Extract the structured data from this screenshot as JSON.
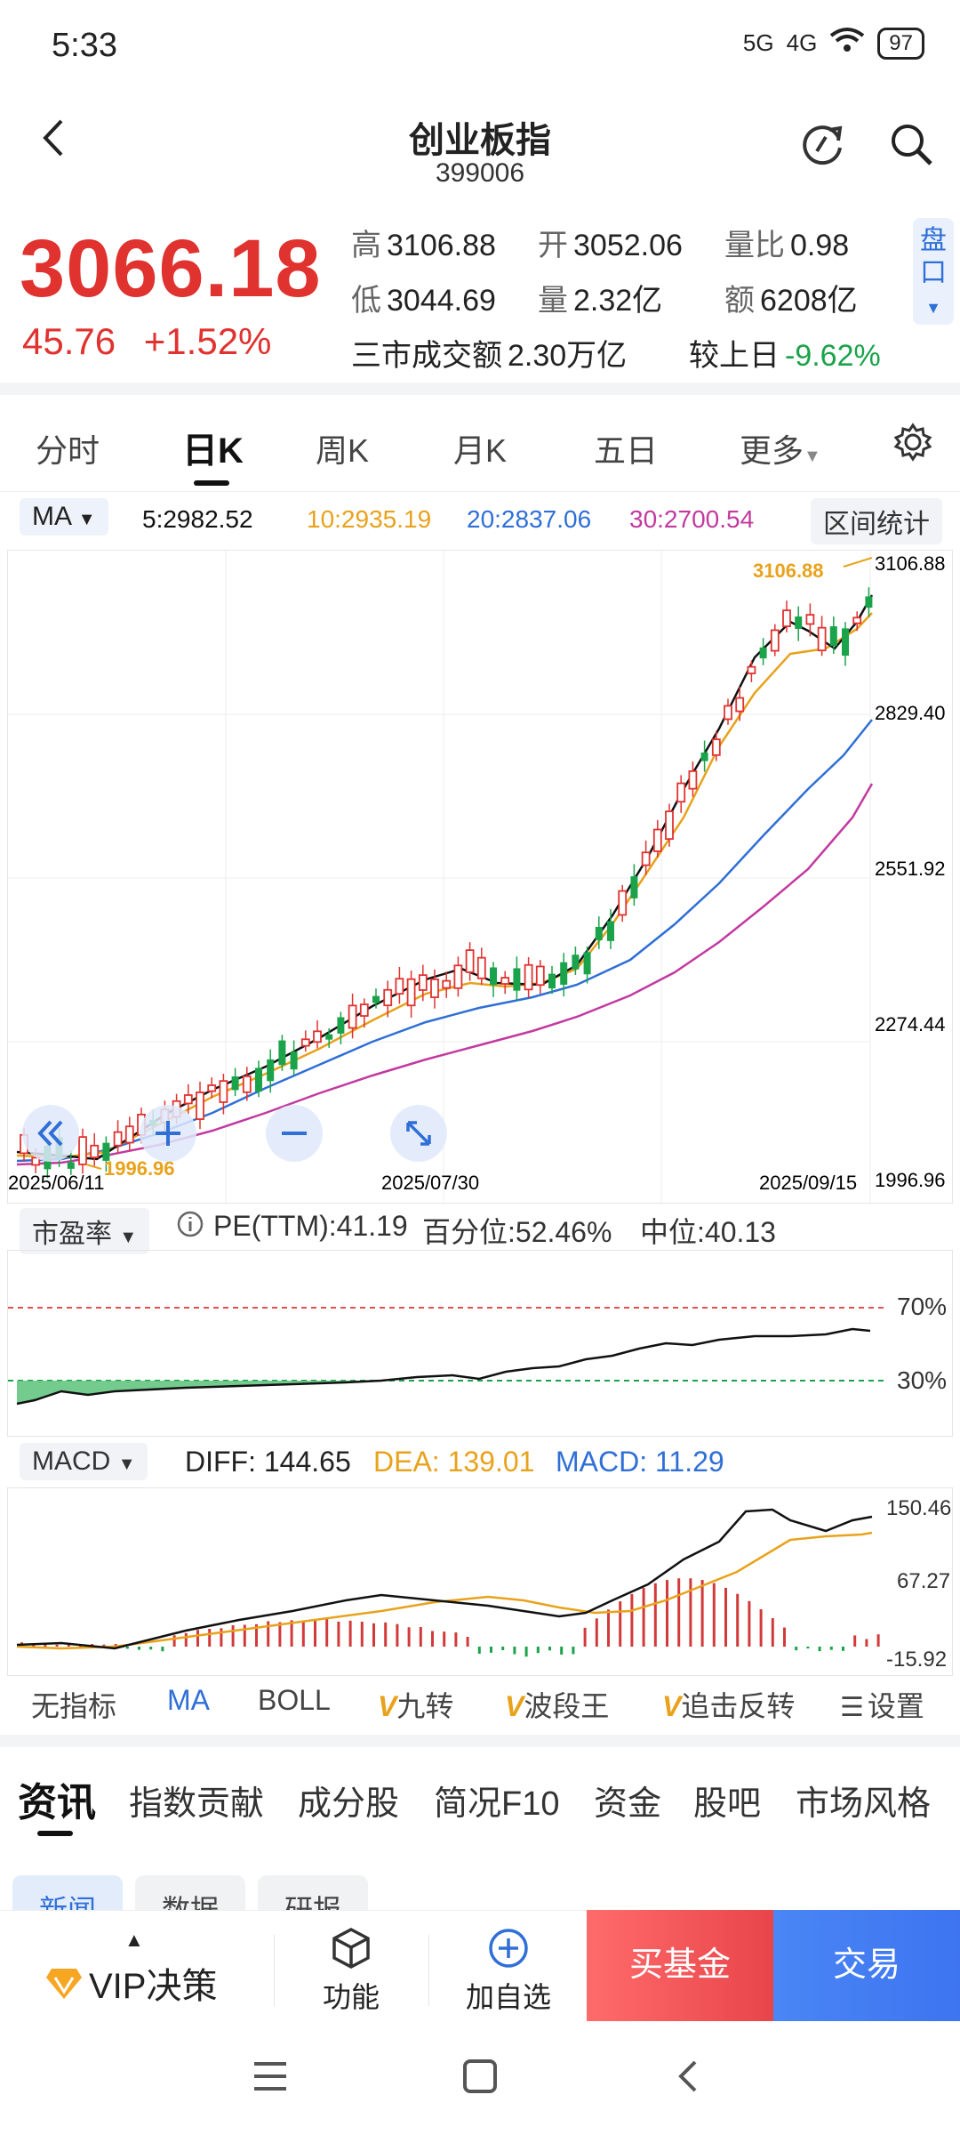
{
  "status_bar": {
    "time": "5:33",
    "signal1": "5G",
    "signal2": "4G",
    "battery": "97"
  },
  "header": {
    "title": "创业板指",
    "code": "399006"
  },
  "quote": {
    "price": "3066.18",
    "change": "45.76",
    "change_pct": "+1.52%",
    "high_label": "高",
    "high": "3106.88",
    "open_label": "开",
    "open": "3052.06",
    "vol_ratio_label": "量比",
    "vol_ratio": "0.98",
    "low_label": "低",
    "low": "3044.69",
    "volume_label": "量",
    "volume": "2.32亿",
    "amount_label": "额",
    "amount": "6208亿",
    "market_turnover_label": "三市成交额",
    "market_turnover": "2.30万亿",
    "vs_prev_label": "较上日",
    "vs_prev": "-9.62%",
    "pan_label": "盘口"
  },
  "tabs": [
    "分时",
    "日K",
    "周K",
    "月K",
    "五日",
    "更多"
  ],
  "ma": {
    "selector": "MA",
    "ma5": "5:2982.52",
    "ma10": "10:2935.19",
    "ma20": "20:2837.06",
    "ma30": "30:2700.54",
    "interval_stats": "区间统计"
  },
  "kline_axis": {
    "y_labels": [
      "3106.88",
      "2829.40",
      "2551.92",
      "2274.44",
      "1996.96"
    ],
    "x_labels": [
      "2025/06/11",
      "2025/07/30",
      "2025/09/15"
    ],
    "max_mark": "3106.88",
    "min_mark": "1996.96"
  },
  "pe": {
    "selector": "市盈率",
    "pe_ttm": "PE(TTM):41.19",
    "percentile": "百分位:52.46%",
    "median": "中位:40.13",
    "upper": "70%",
    "lower": "30%"
  },
  "macd": {
    "selector": "MACD",
    "diff": "DIFF: 144.65",
    "dea": "DEA: 139.01",
    "macd": "MACD: 11.29",
    "y_labels": [
      "150.46",
      "67.27",
      "-15.92"
    ]
  },
  "indicators": [
    "无指标",
    "MA",
    "BOLL",
    "九转",
    "波段王",
    "追击反转",
    "设置"
  ],
  "info_tabs": [
    "资讯",
    "指数贡献",
    "成分股",
    "简况F10",
    "资金",
    "股吧",
    "市场风格"
  ],
  "sub_tabs": [
    "新闻",
    "数据",
    "研报"
  ],
  "actions": {
    "vip": "VIP决策",
    "func": "功能",
    "add": "加自选",
    "buy": "买基金",
    "trade": "交易"
  },
  "colors": {
    "up": "#e0322f",
    "down": "#1aa34a",
    "ma5": "#111111",
    "ma10": "#e8a21b",
    "ma20": "#2f6fd6",
    "ma30": "#c23aa0"
  }
}
